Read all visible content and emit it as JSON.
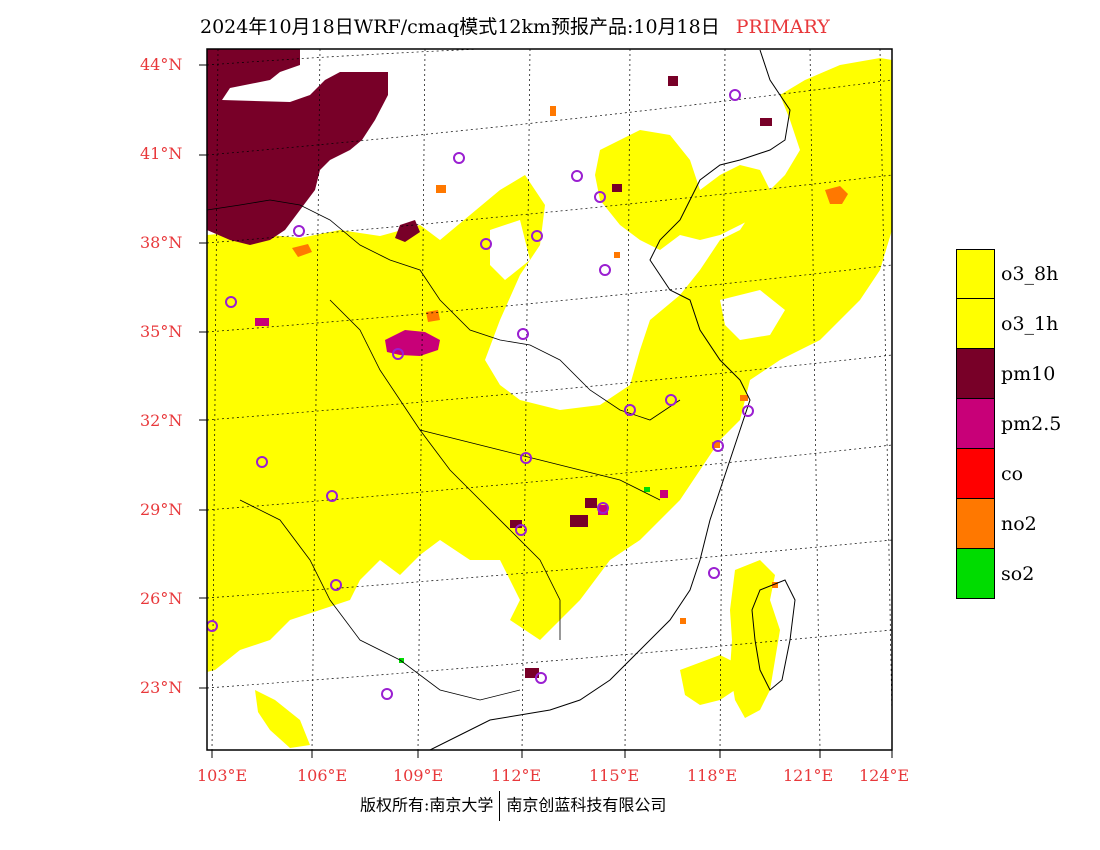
{
  "title": {
    "text": "2024年10月18日WRF/cmaq模式12km预报产品:10月18日",
    "tag": "PRIMARY",
    "tag_color": "#e8383b"
  },
  "map": {
    "lat_labels": [
      "44°N",
      "41°N",
      "38°N",
      "35°N",
      "32°N",
      "29°N",
      "26°N",
      "23°N"
    ],
    "lon_labels": [
      "103°E",
      "106°E",
      "109°E",
      "112°E",
      "115°E",
      "118°E",
      "121°E",
      "124°E"
    ],
    "region": "China (central & eastern)"
  },
  "legend": [
    {
      "label": "o3_8h",
      "color": "#ffff00"
    },
    {
      "label": "o3_1h",
      "color": "#ffff00"
    },
    {
      "label": "pm10",
      "color": "#780028"
    },
    {
      "label": "pm2.5",
      "color": "#c80078"
    },
    {
      "label": "co",
      "color": "#ff0000"
    },
    {
      "label": "no2",
      "color": "#ff7800"
    },
    {
      "label": "so2",
      "color": "#00dc00"
    }
  ],
  "copyright": {
    "left": "版权所有:南京大学",
    "right": "南京创蓝科技有限公司"
  },
  "colors": {
    "axis_label": "#e8383b",
    "station": "#9a1fd1"
  }
}
